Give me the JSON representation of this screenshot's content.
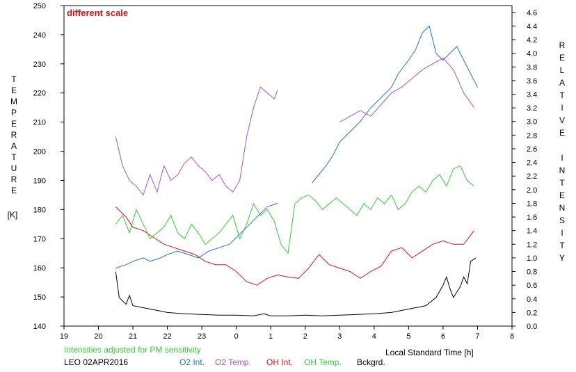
{
  "chart_data": {
    "type": "line",
    "annotation": "different scale",
    "note": "Intensities adjusted for PM sensitivity",
    "station_label": "LEO 02APR2016",
    "xlabel": "Local Standard Time [h]",
    "ylabel_left": "TEMPERATURE",
    "ylabel_left_unit": "[K]",
    "ylabel_right": "RELATIVE INTENSITY",
    "x_ticks": [
      "19",
      "20",
      "21",
      "22",
      "23",
      "0",
      "1",
      "2",
      "3",
      "4",
      "5",
      "6",
      "7",
      "8"
    ],
    "x_range": [
      19,
      32
    ],
    "y_left_range": [
      140,
      250
    ],
    "y_left_ticks": [
      140,
      150,
      160,
      170,
      180,
      190,
      200,
      210,
      220,
      230,
      240,
      250
    ],
    "y_right_range": [
      0.0,
      4.7
    ],
    "y_right_ticks": [
      "0.0",
      "0.2",
      "0.4",
      "0.6",
      "0.8",
      "1.0",
      "1.2",
      "1.4",
      "1.6",
      "1.8",
      "2.0",
      "2.2",
      "2.4",
      "2.6",
      "2.8",
      "3.0",
      "3.2",
      "3.4",
      "3.6",
      "3.8",
      "4.0",
      "4.2",
      "4.4",
      "4.6"
    ],
    "legend": [
      "O2 Int.",
      "O2 Temp.",
      "OH Int.",
      "OH Temp.",
      "Bckgrd."
    ],
    "series": [
      {
        "name": "O2 Int.",
        "axis": "right",
        "color": "#1e73d2",
        "x": [
          20.5,
          20.8,
          21.0,
          21.3,
          21.5,
          21.8,
          22.0,
          22.3,
          22.6,
          22.9,
          23.2,
          23.5,
          23.8,
          24.0,
          24.3,
          24.6,
          24.9,
          25.2,
          25.2,
          26.2,
          26.6,
          26.8,
          27.0,
          27.3,
          27.6,
          27.9,
          28.2,
          28.5,
          28.7,
          29.0,
          29.2,
          29.4,
          29.6,
          29.8,
          30.0,
          30.2,
          30.4,
          30.6,
          30.8,
          31.0
        ],
        "y": [
          0.85,
          0.9,
          0.95,
          1.0,
          0.95,
          1.0,
          1.05,
          1.1,
          1.05,
          1.0,
          1.1,
          1.15,
          1.2,
          1.3,
          1.45,
          1.6,
          1.75,
          1.8,
          null,
          2.1,
          2.35,
          2.5,
          2.7,
          2.85,
          3.0,
          3.2,
          3.35,
          3.5,
          3.7,
          3.9,
          4.05,
          4.3,
          4.4,
          4.0,
          3.9,
          4.0,
          4.1,
          3.9,
          3.7,
          3.5
        ]
      },
      {
        "name": "O2 Temp.",
        "axis": "left",
        "color": "#a550d2",
        "x": [
          20.5,
          20.7,
          20.9,
          21.1,
          21.3,
          21.5,
          21.7,
          21.9,
          22.1,
          22.3,
          22.5,
          22.7,
          22.9,
          23.1,
          23.3,
          23.5,
          23.7,
          23.9,
          24.1,
          24.3,
          24.5,
          24.7,
          24.9,
          25.1,
          25.2,
          26.7,
          27.0,
          27.3,
          27.6,
          27.9,
          28.2,
          28.5,
          28.8,
          29.1,
          29.4,
          29.7,
          30.0,
          30.3,
          30.6,
          30.9
        ],
        "y": [
          205,
          195,
          190,
          188,
          185,
          192,
          186,
          195,
          190,
          192,
          196,
          198,
          195,
          193,
          190,
          192,
          188,
          186,
          190,
          205,
          215,
          222,
          220,
          218,
          221,
          null,
          210,
          212,
          214,
          212,
          216,
          220,
          222,
          225,
          228,
          230,
          232,
          228,
          220,
          215
        ]
      },
      {
        "name": "OH Int.",
        "axis": "right",
        "color": "#d21414",
        "x": [
          20.5,
          20.8,
          21.0,
          21.3,
          21.6,
          21.9,
          22.2,
          22.5,
          22.8,
          23.1,
          23.4,
          23.7,
          24.0,
          24.3,
          24.6,
          24.9,
          25.2,
          25.5,
          25.8,
          26.1,
          26.4,
          26.7,
          27.0,
          27.3,
          27.6,
          27.9,
          28.2,
          28.5,
          28.8,
          29.1,
          29.4,
          29.7,
          30.0,
          30.3,
          30.6,
          30.9
        ],
        "y": [
          1.75,
          1.6,
          1.45,
          1.4,
          1.3,
          1.2,
          1.15,
          1.1,
          1.05,
          0.95,
          0.9,
          0.9,
          0.8,
          0.65,
          0.6,
          0.7,
          0.75,
          0.72,
          0.7,
          0.85,
          1.05,
          0.9,
          0.85,
          0.8,
          0.7,
          0.8,
          0.88,
          1.1,
          1.15,
          1.0,
          1.1,
          1.2,
          1.25,
          1.2,
          1.2,
          1.4
        ]
      },
      {
        "name": "OH Temp.",
        "axis": "left",
        "color": "#32c832",
        "x": [
          20.5,
          20.7,
          20.9,
          21.1,
          21.3,
          21.5,
          21.7,
          21.9,
          22.1,
          22.3,
          22.5,
          22.7,
          22.9,
          23.1,
          23.3,
          23.5,
          23.7,
          23.9,
          24.1,
          24.3,
          24.5,
          24.7,
          24.9,
          25.1,
          25.3,
          25.5,
          25.7,
          25.9,
          26.1,
          26.3,
          26.5,
          26.7,
          26.9,
          27.1,
          27.3,
          27.5,
          27.7,
          27.9,
          28.1,
          28.3,
          28.5,
          28.7,
          28.9,
          29.1,
          29.3,
          29.5,
          29.7,
          29.9,
          30.1,
          30.3,
          30.5,
          30.7,
          30.9
        ],
        "y": [
          175,
          178,
          172,
          180,
          175,
          170,
          172,
          174,
          178,
          172,
          170,
          175,
          172,
          168,
          170,
          172,
          175,
          178,
          170,
          175,
          182,
          178,
          180,
          176,
          168,
          165,
          182,
          184,
          185,
          183,
          180,
          182,
          184,
          182,
          180,
          178,
          182,
          180,
          184,
          182,
          185,
          180,
          182,
          186,
          188,
          186,
          190,
          192,
          188,
          194,
          195,
          190,
          188
        ]
      },
      {
        "name": "Bckgrd.",
        "axis": "right",
        "color": "#000000",
        "x": [
          20.5,
          20.6,
          20.8,
          20.9,
          21.0,
          21.2,
          21.5,
          21.8,
          22.0,
          22.5,
          23.0,
          23.5,
          24.0,
          24.5,
          24.8,
          25.0,
          25.5,
          26.0,
          26.5,
          27.0,
          27.5,
          28.0,
          28.5,
          29.0,
          29.5,
          29.8,
          30.0,
          30.1,
          30.2,
          30.3,
          30.4,
          30.5,
          30.6,
          30.7,
          30.8,
          30.95
        ],
        "y": [
          0.8,
          0.42,
          0.32,
          0.45,
          0.3,
          0.28,
          0.25,
          0.22,
          0.2,
          0.18,
          0.17,
          0.16,
          0.16,
          0.15,
          0.18,
          0.15,
          0.15,
          0.16,
          0.15,
          0.16,
          0.17,
          0.18,
          0.2,
          0.25,
          0.3,
          0.42,
          0.6,
          0.72,
          0.55,
          0.42,
          0.5,
          0.58,
          0.72,
          0.62,
          0.95,
          1.0
        ]
      }
    ]
  }
}
